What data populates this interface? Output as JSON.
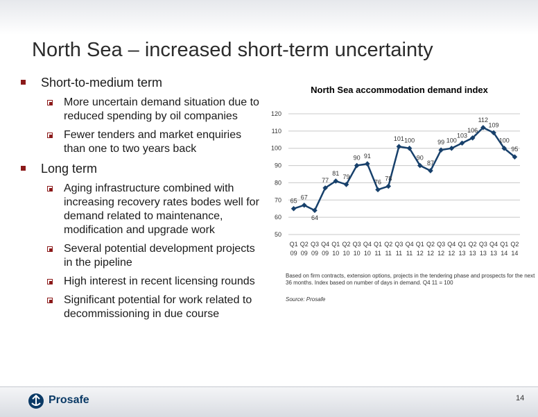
{
  "slide": {
    "title": "North Sea – increased short-term uncertainty",
    "page_number": "14",
    "brand": "Prosafe"
  },
  "bullets": {
    "short_term": {
      "heading": "Short-to-medium term",
      "items": [
        "More uncertain demand situation due to reduced spending by oil companies",
        "Fewer tenders and market enquiries than one to two years back"
      ]
    },
    "long_term": {
      "heading": "Long term",
      "items": [
        "Aging infrastructure combined with increasing recovery rates bodes well for demand related to maintenance, modification and upgrade work",
        "Several potential development projects in the pipeline",
        "High interest in recent licensing rounds",
        "Significant potential for work related to decommissioning in due course"
      ]
    }
  },
  "chart_note": "Based on firm contracts, extension options, projects in the tendering phase and prospects for the next 36 months. Index based on number of  days in demand. Q4 11 = 100",
  "chart_source": "Source: Prosafe",
  "colors": {
    "series": "#17406b",
    "accent_bullet": "#8b1a1a",
    "brand": "#0b3a66"
  },
  "chart_data": {
    "type": "line",
    "title": "North Sea accommodation demand index",
    "xlabel": "",
    "ylabel": "",
    "categories": [
      [
        "Q1",
        "09"
      ],
      [
        "Q2",
        "09"
      ],
      [
        "Q3",
        "09"
      ],
      [
        "Q4",
        "09"
      ],
      [
        "Q1",
        "10"
      ],
      [
        "Q2",
        "10"
      ],
      [
        "Q3",
        "10"
      ],
      [
        "Q4",
        "10"
      ],
      [
        "Q1",
        "11"
      ],
      [
        "Q2",
        "11"
      ],
      [
        "Q3",
        "11"
      ],
      [
        "Q4",
        "11"
      ],
      [
        "Q1",
        "12"
      ],
      [
        "Q2",
        "12"
      ],
      [
        "Q3",
        "12"
      ],
      [
        "Q4",
        "12"
      ],
      [
        "Q1",
        "13"
      ],
      [
        "Q2",
        "13"
      ],
      [
        "Q3",
        "13"
      ],
      [
        "Q4",
        "13"
      ],
      [
        "Q1",
        "14"
      ],
      [
        "Q2",
        "14"
      ]
    ],
    "values": [
      65,
      67,
      64,
      77,
      81,
      79,
      90,
      91,
      76,
      78,
      101,
      100,
      90,
      87,
      99,
      100,
      103,
      106,
      112,
      109,
      100,
      95
    ],
    "ylim": [
      50,
      120
    ],
    "yticks": [
      50,
      60,
      70,
      80,
      90,
      100,
      110,
      120
    ],
    "grid": "horizontal",
    "marker": "diamond"
  }
}
